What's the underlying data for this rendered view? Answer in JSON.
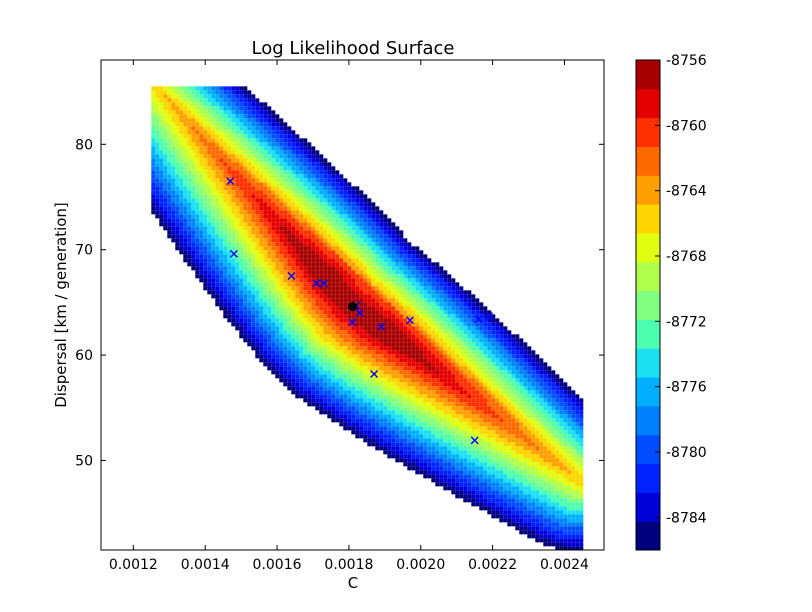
{
  "chart_data": {
    "type": "contour",
    "title": "Log Likelihood Surface",
    "xlabel": "C",
    "ylabel": "Dispersal [km / generation]",
    "xlim": [
      0.00111,
      0.00251
    ],
    "ylim": [
      41.5,
      88
    ],
    "grid": false,
    "x_ticks": [
      0.0012,
      0.0014,
      0.0016,
      0.0018,
      0.002,
      0.0022,
      0.0024
    ],
    "x_tick_labels": [
      "0.0012",
      "0.0014",
      "0.0016",
      "0.0018",
      "0.0020",
      "0.0022",
      "0.0024"
    ],
    "y_ticks": [
      50,
      60,
      70,
      80
    ],
    "y_tick_labels": [
      "50",
      "60",
      "70",
      "80"
    ],
    "colorbar": {
      "min": -8786,
      "max": -8756,
      "tick_values": [
        -8756,
        -8760,
        -8764,
        -8768,
        -8772,
        -8776,
        -8780,
        -8784
      ],
      "tick_labels": [
        "-8756",
        "-8760",
        "-8764",
        "-8768",
        "-8772",
        "-8776",
        "-8780",
        "-8784"
      ],
      "level_colors": [
        "#00007f",
        "#0000d8",
        "#0022ff",
        "#004cff",
        "#0080ff",
        "#00b0ff",
        "#1ce0f0",
        "#4cffb0",
        "#80ff80",
        "#b0ff4c",
        "#e0ff10",
        "#ffd600",
        "#ffa000",
        "#ff6a00",
        "#ff3000",
        "#e50000",
        "#a60000"
      ]
    },
    "surface": {
      "peak": [
        0.00181,
        64.6
      ],
      "ridge_start": [
        0.00125,
        86
      ],
      "ridge_mid": [
        0.00181,
        64.6
      ],
      "ridge_end": [
        0.00245,
        48
      ],
      "data_x_range": [
        0.00125,
        0.00245
      ],
      "data_top_y": 85.5
    },
    "series": [
      {
        "marker": "x",
        "color": "#0000ff",
        "points": [
          [
            0.00147,
            76.5
          ],
          [
            0.00148,
            69.6
          ],
          [
            0.00164,
            67.5
          ],
          [
            0.00171,
            66.8
          ],
          [
            0.00173,
            66.8
          ],
          [
            0.00182,
            64.7
          ],
          [
            0.00183,
            64.0
          ],
          [
            0.00181,
            63.1
          ],
          [
            0.00189,
            62.7
          ],
          [
            0.00197,
            63.3
          ],
          [
            0.00187,
            58.2
          ],
          [
            0.00216,
            63.4
          ],
          [
            0.00219,
            63.7
          ],
          [
            0.00215,
            51.9
          ]
        ]
      },
      {
        "marker": "o",
        "color": "#000000",
        "points": [
          [
            0.00181,
            64.6
          ]
        ]
      }
    ]
  }
}
